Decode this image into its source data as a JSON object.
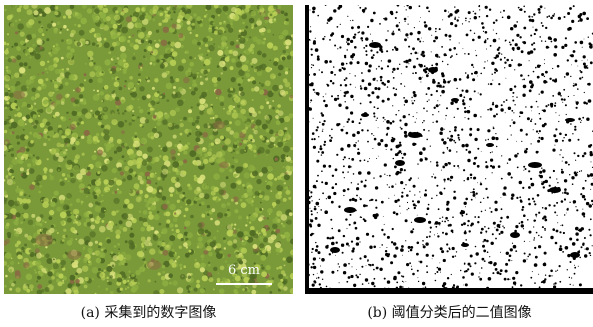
{
  "panel_a": {
    "scale_label": "6 cm",
    "caption": "(a) 采集到的数字图像",
    "colors": {
      "base": "#7a9a3a",
      "moss_light": "#b8cf55",
      "moss_mid": "#8fb041",
      "moss_dark": "#4f6a24",
      "soil": "#8a6a44",
      "highlight": "#d8e07a"
    }
  },
  "panel_b": {
    "caption": "(b) 阈值分类后的二值图像",
    "colors": {
      "foreground": "#ffffff",
      "background": "#000000"
    }
  }
}
